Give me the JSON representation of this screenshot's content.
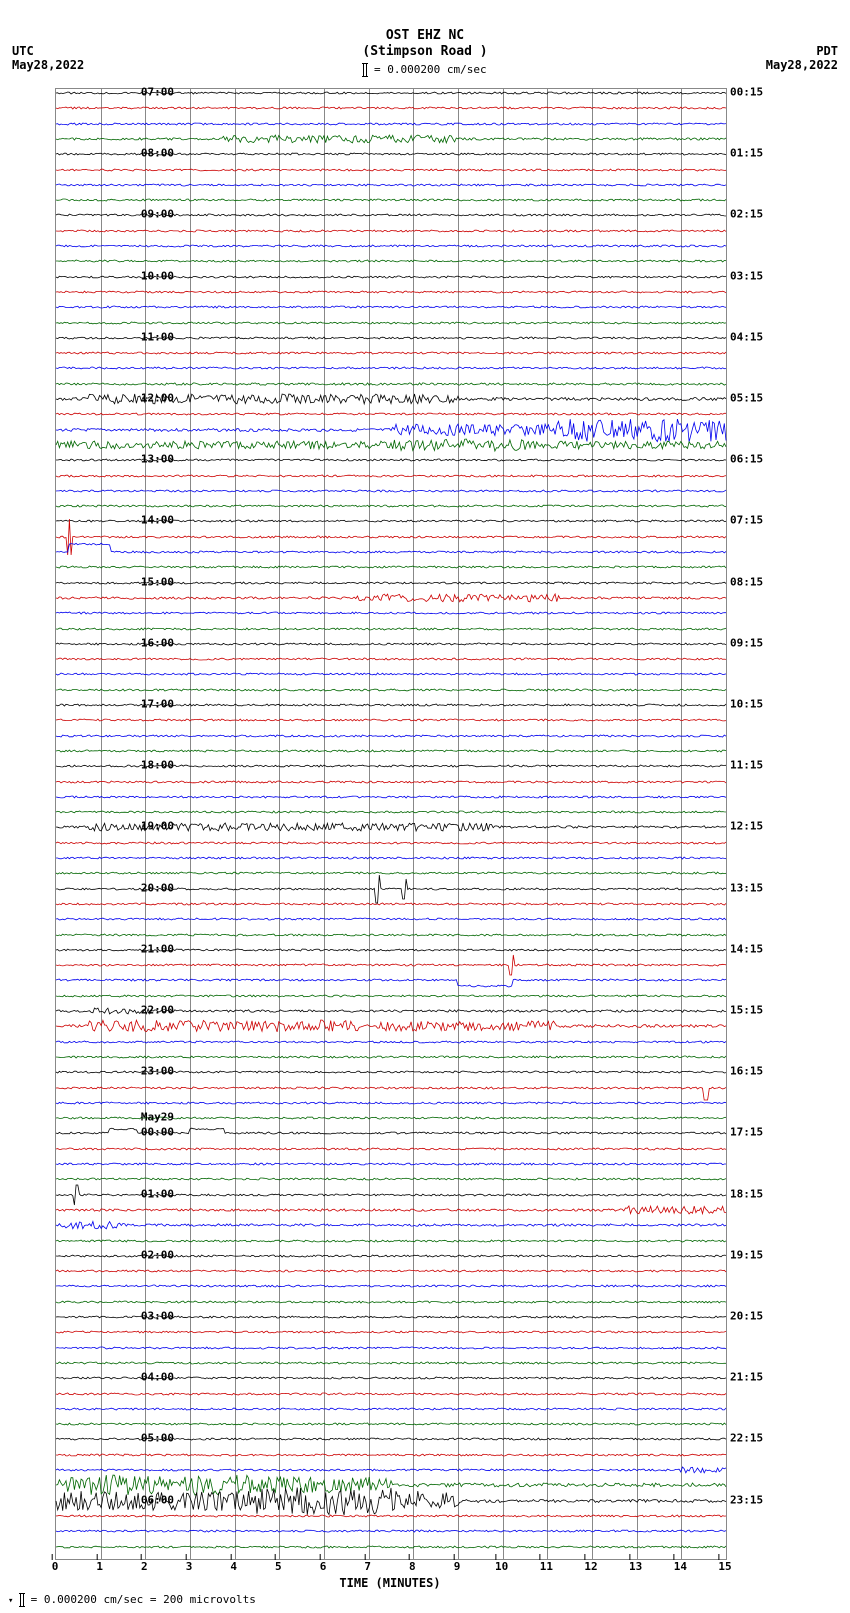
{
  "header": {
    "station": "OST EHZ NC",
    "location": "(Stimpson Road )",
    "scale_text": "= 0.000200 cm/sec"
  },
  "corners": {
    "tl_tz": "UTC",
    "tl_date": "May28,2022",
    "tr_tz": "PDT",
    "tr_date": "May28,2022"
  },
  "x_axis": {
    "label": "TIME (MINUTES)",
    "ticks": [
      0,
      1,
      2,
      3,
      4,
      5,
      6,
      7,
      8,
      9,
      10,
      11,
      12,
      13,
      14,
      15
    ]
  },
  "footer": {
    "text": "= 0.000200 cm/sec =    200 microvolts"
  },
  "colors": {
    "black": "#000000",
    "red": "#cc0000",
    "blue": "#0000ee",
    "green": "#006600",
    "grid": "#888888",
    "bg": "#ffffff"
  },
  "plot": {
    "n_traces": 96,
    "row_spacing": 15.3,
    "left_labels": [
      {
        "row": 0,
        "text": "07:00"
      },
      {
        "row": 4,
        "text": "08:00"
      },
      {
        "row": 8,
        "text": "09:00"
      },
      {
        "row": 12,
        "text": "10:00"
      },
      {
        "row": 16,
        "text": "11:00"
      },
      {
        "row": 20,
        "text": "12:00"
      },
      {
        "row": 24,
        "text": "13:00"
      },
      {
        "row": 28,
        "text": "14:00"
      },
      {
        "row": 32,
        "text": "15:00"
      },
      {
        "row": 36,
        "text": "16:00"
      },
      {
        "row": 40,
        "text": "17:00"
      },
      {
        "row": 44,
        "text": "18:00"
      },
      {
        "row": 48,
        "text": "19:00"
      },
      {
        "row": 52,
        "text": "20:00"
      },
      {
        "row": 56,
        "text": "21:00"
      },
      {
        "row": 60,
        "text": "22:00"
      },
      {
        "row": 64,
        "text": "23:00"
      },
      {
        "row": 67,
        "text": "May29"
      },
      {
        "row": 68,
        "text": "00:00"
      },
      {
        "row": 72,
        "text": "01:00"
      },
      {
        "row": 76,
        "text": "02:00"
      },
      {
        "row": 80,
        "text": "03:00"
      },
      {
        "row": 84,
        "text": "04:00"
      },
      {
        "row": 88,
        "text": "05:00"
      },
      {
        "row": 92,
        "text": "06:00"
      }
    ],
    "right_labels": [
      {
        "row": 0,
        "text": "00:15"
      },
      {
        "row": 4,
        "text": "01:15"
      },
      {
        "row": 8,
        "text": "02:15"
      },
      {
        "row": 12,
        "text": "03:15"
      },
      {
        "row": 16,
        "text": "04:15"
      },
      {
        "row": 20,
        "text": "05:15"
      },
      {
        "row": 24,
        "text": "06:15"
      },
      {
        "row": 28,
        "text": "07:15"
      },
      {
        "row": 32,
        "text": "08:15"
      },
      {
        "row": 36,
        "text": "09:15"
      },
      {
        "row": 40,
        "text": "10:15"
      },
      {
        "row": 44,
        "text": "11:15"
      },
      {
        "row": 48,
        "text": "12:15"
      },
      {
        "row": 52,
        "text": "13:15"
      },
      {
        "row": 56,
        "text": "14:15"
      },
      {
        "row": 60,
        "text": "15:15"
      },
      {
        "row": 64,
        "text": "16:15"
      },
      {
        "row": 68,
        "text": "17:15"
      },
      {
        "row": 72,
        "text": "18:15"
      },
      {
        "row": 76,
        "text": "19:15"
      },
      {
        "row": 80,
        "text": "20:15"
      },
      {
        "row": 84,
        "text": "21:15"
      },
      {
        "row": 88,
        "text": "22:15"
      },
      {
        "row": 92,
        "text": "23:15"
      }
    ],
    "color_cycle": [
      "black",
      "red",
      "blue",
      "green"
    ],
    "trace_amplitudes": [
      {
        "base": 1.0
      },
      {
        "base": 1.0
      },
      {
        "base": 1.0
      },
      {
        "base": 1.2,
        "burst": [
          {
            "start": 0.25,
            "end": 0.6,
            "amp": 4
          }
        ]
      },
      {
        "base": 1.0
      },
      {
        "base": 1.0
      },
      {
        "base": 1.0
      },
      {
        "base": 1.0
      },
      {
        "base": 1.0
      },
      {
        "base": 1.0
      },
      {
        "base": 1.0
      },
      {
        "base": 1.0
      },
      {
        "base": 1.0
      },
      {
        "base": 1.0
      },
      {
        "base": 1.0
      },
      {
        "base": 1.0
      },
      {
        "base": 1.0
      },
      {
        "base": 1.0
      },
      {
        "base": 1.0
      },
      {
        "base": 1.2
      },
      {
        "base": 1.5,
        "burst": [
          {
            "start": 0.05,
            "end": 0.6,
            "amp": 5
          }
        ]
      },
      {
        "base": 1.0
      },
      {
        "base": 1.5,
        "burst": [
          {
            "start": 0.5,
            "end": 1.0,
            "amp": 6
          },
          {
            "start": 0.75,
            "end": 1.0,
            "amp": 12
          }
        ]
      },
      {
        "base": 1.5,
        "burst": [
          {
            "start": 0.0,
            "end": 1.0,
            "amp": 4
          },
          {
            "start": 0.5,
            "end": 0.7,
            "amp": 6
          }
        ]
      },
      {
        "base": 1.0
      },
      {
        "base": 1.0
      },
      {
        "base": 1.0
      },
      {
        "base": 1.0
      },
      {
        "base": 1.0
      },
      {
        "base": 1.0,
        "spike": [
          {
            "x": 0.02,
            "amp": 18
          }
        ]
      },
      {
        "base": 1.0,
        "step": [
          {
            "x": 0.02,
            "to": 0.08,
            "off": -8
          }
        ]
      },
      {
        "base": 1.0
      },
      {
        "base": 1.0
      },
      {
        "base": 1.2,
        "burst": [
          {
            "start": 0.45,
            "end": 0.75,
            "amp": 4
          }
        ]
      },
      {
        "base": 1.0
      },
      {
        "base": 1.0
      },
      {
        "base": 1.0
      },
      {
        "base": 1.0
      },
      {
        "base": 1.0
      },
      {
        "base": 1.0
      },
      {
        "base": 1.0
      },
      {
        "base": 1.0
      },
      {
        "base": 1.0
      },
      {
        "base": 1.0
      },
      {
        "base": 1.0
      },
      {
        "base": 1.0
      },
      {
        "base": 1.0
      },
      {
        "base": 1.0
      },
      {
        "base": 1.2,
        "burst": [
          {
            "start": 0.05,
            "end": 0.65,
            "amp": 4
          }
        ]
      },
      {
        "base": 1.0
      },
      {
        "base": 1.0
      },
      {
        "base": 1.0
      },
      {
        "base": 1.0,
        "spike": [
          {
            "x": 0.48,
            "amp": 14
          },
          {
            "x": 0.52,
            "amp": 10
          }
        ]
      },
      {
        "base": 1.0
      },
      {
        "base": 1.0
      },
      {
        "base": 1.0
      },
      {
        "base": 1.0
      },
      {
        "base": 1.0,
        "spike": [
          {
            "x": 0.68,
            "amp": 10
          }
        ]
      },
      {
        "base": 1.0,
        "step": [
          {
            "x": 0.6,
            "to": 0.68,
            "off": 6
          }
        ]
      },
      {
        "base": 1.0
      },
      {
        "base": 1.2,
        "burst": [
          {
            "start": 0.05,
            "end": 0.15,
            "amp": 3
          }
        ]
      },
      {
        "base": 1.5,
        "burst": [
          {
            "start": 0.05,
            "end": 0.45,
            "amp": 6
          },
          {
            "start": 0.48,
            "end": 0.75,
            "amp": 5
          }
        ]
      },
      {
        "base": 1.0
      },
      {
        "base": 1.0
      },
      {
        "base": 1.0
      },
      {
        "base": 1.0,
        "spike": [
          {
            "x": 0.97,
            "amp": 12
          }
        ]
      },
      {
        "base": 1.0
      },
      {
        "base": 1.0
      },
      {
        "base": 1.0,
        "step": [
          {
            "x": 0.08,
            "to": 0.12,
            "off": -4
          },
          {
            "x": 0.2,
            "to": 0.25,
            "off": -4
          }
        ]
      },
      {
        "base": 1.0
      },
      {
        "base": 1.0
      },
      {
        "base": 1.0
      },
      {
        "base": 1.0,
        "spike": [
          {
            "x": 0.03,
            "amp": 10
          }
        ]
      },
      {
        "base": 1.2,
        "burst": [
          {
            "start": 0.85,
            "end": 1.0,
            "amp": 4
          }
        ]
      },
      {
        "base": 1.2,
        "burst": [
          {
            "start": 0.0,
            "end": 0.1,
            "amp": 4
          }
        ]
      },
      {
        "base": 1.0
      },
      {
        "base": 1.0
      },
      {
        "base": 1.0
      },
      {
        "base": 1.0
      },
      {
        "base": 1.0
      },
      {
        "base": 1.0
      },
      {
        "base": 1.0
      },
      {
        "base": 1.0
      },
      {
        "base": 1.0
      },
      {
        "base": 1.0
      },
      {
        "base": 1.0
      },
      {
        "base": 1.0
      },
      {
        "base": 1.0
      },
      {
        "base": 1.0
      },
      {
        "base": 1.0
      },
      {
        "base": 1.0,
        "burst": [
          {
            "start": 0.93,
            "end": 1.0,
            "amp": 3
          }
        ]
      },
      {
        "base": 2.0,
        "burst": [
          {
            "start": 0.0,
            "end": 0.5,
            "amp": 8
          },
          {
            "start": 0.05,
            "end": 0.3,
            "amp": 10
          }
        ]
      },
      {
        "base": 1.5,
        "burst": [
          {
            "start": 0.0,
            "end": 0.6,
            "amp": 10
          },
          {
            "start": 0.3,
            "end": 0.5,
            "amp": 14
          }
        ]
      },
      {
        "base": 1.0
      },
      {
        "base": 1.0
      },
      {
        "base": 1.0
      }
    ]
  }
}
